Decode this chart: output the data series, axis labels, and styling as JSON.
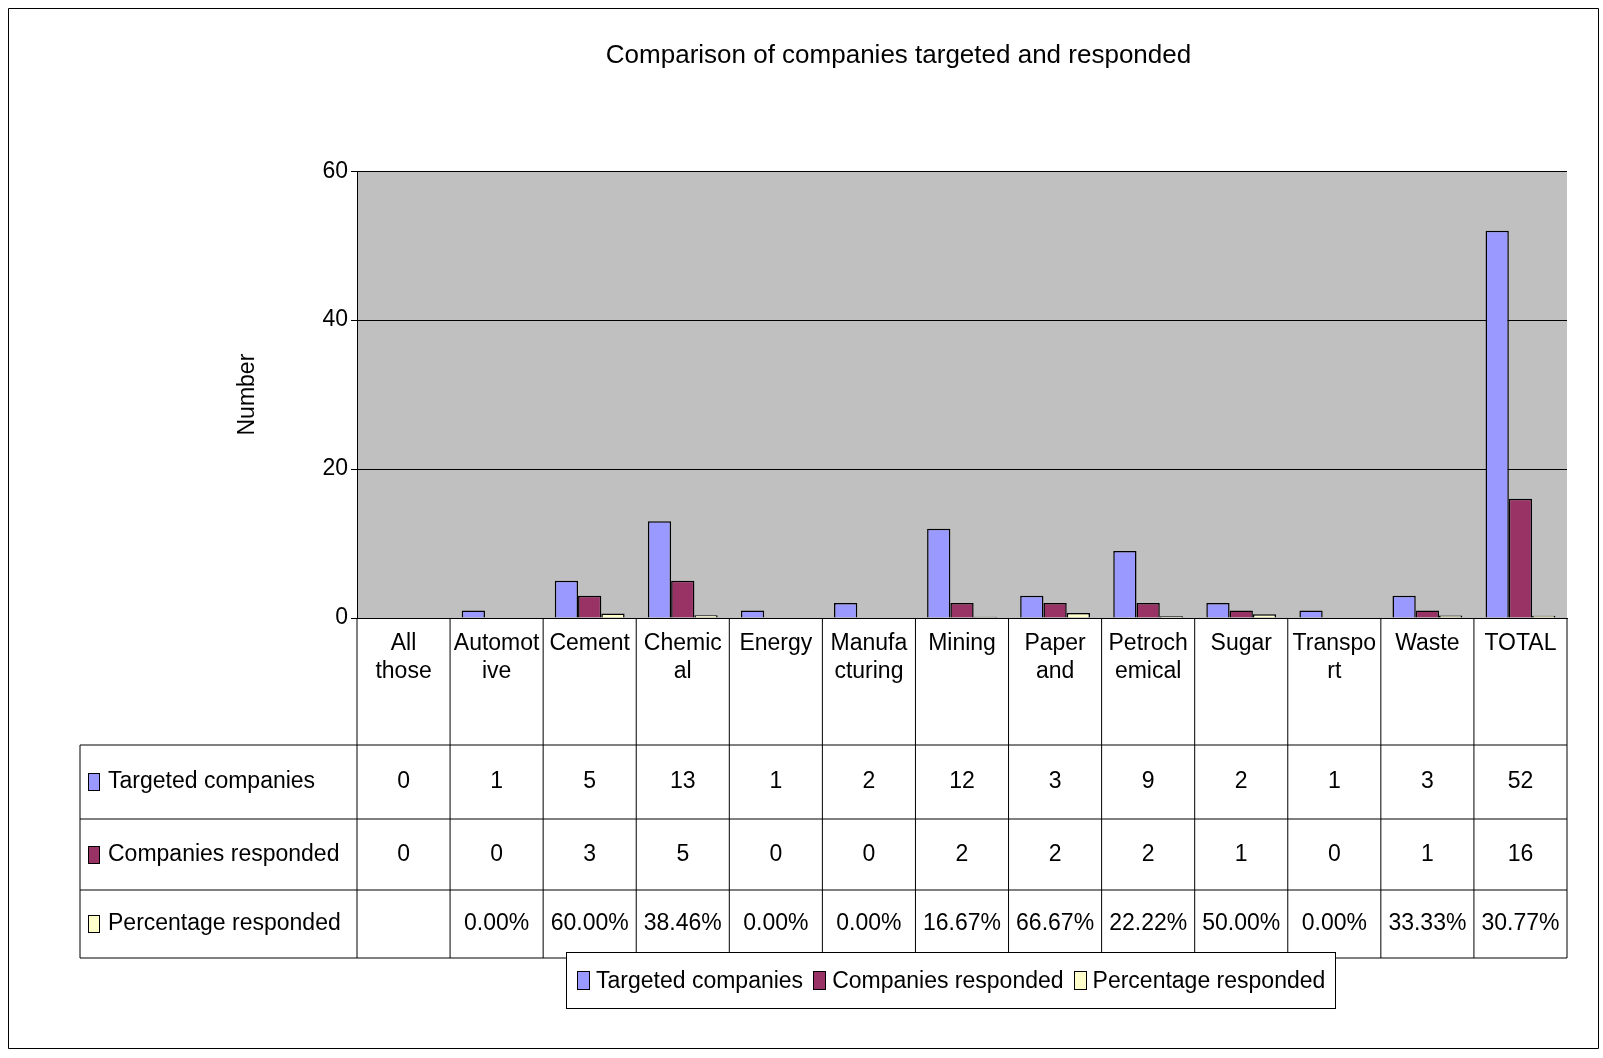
{
  "chart_data": {
    "type": "bar",
    "title": "Comparison of companies targeted and responded",
    "ylabel": "Number",
    "categories": [
      "All those",
      "Automotive",
      "Cement",
      "Chemical",
      "Energy",
      "Manufacturing",
      "Mining",
      "Paper and",
      "Petrochemical",
      "Sugar",
      "Transport",
      "Waste",
      "TOTAL"
    ],
    "series": [
      {
        "name": "Targeted companies",
        "color": "#9999ff",
        "values": [
          0,
          1,
          5,
          13,
          1,
          2,
          12,
          3,
          9,
          2,
          1,
          3,
          52
        ],
        "value_labels": [
          "0",
          "1",
          "5",
          "13",
          "1",
          "2",
          "12",
          "3",
          "9",
          "2",
          "1",
          "3",
          "52"
        ]
      },
      {
        "name": "Companies responded",
        "color": "#993366",
        "values": [
          0,
          0,
          3,
          5,
          0,
          0,
          2,
          2,
          2,
          1,
          0,
          1,
          16
        ],
        "value_labels": [
          "0",
          "0",
          "3",
          "5",
          "0",
          "0",
          "2",
          "2",
          "2",
          "1",
          "0",
          "1",
          "16"
        ]
      },
      {
        "name": "Percentage responded",
        "color": "#ffffcc",
        "values": [
          null,
          0,
          0.6,
          0.3846,
          0,
          0,
          0.1667,
          0.6667,
          0.2222,
          0.5,
          0,
          0.3333,
          0.3077
        ],
        "value_labels": [
          null,
          "0.00%",
          "60.00%",
          "38.46%",
          "0.00%",
          "0.00%",
          "16.67%",
          "66.67%",
          "22.22%",
          "50.00%",
          "0.00%",
          "33.33%",
          "30.77%"
        ]
      }
    ],
    "ylim": [
      0,
      60
    ],
    "yticks": [
      0,
      20,
      40,
      60
    ],
    "grid": "y",
    "legend": "bottom"
  }
}
